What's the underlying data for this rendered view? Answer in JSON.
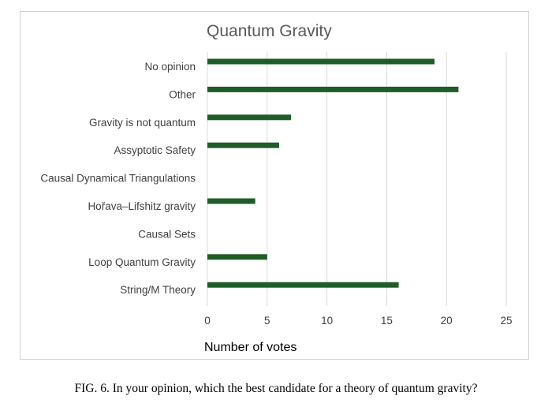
{
  "chart_data": {
    "type": "bar",
    "orientation": "horizontal",
    "title": "Quantum Gravity",
    "xlabel": "Number of votes",
    "ylabel": "",
    "categories": [
      "No opinion",
      "Other",
      "Gravity is not quantum",
      "Assyptotic Safety",
      "Causal Dynamical Triangulations",
      "Hořava–Lifshitz gravity",
      "Causal Sets",
      "Loop Quantum Gravity",
      "String/M Theory"
    ],
    "values": [
      19,
      21,
      7,
      6,
      0,
      4,
      0,
      5,
      16
    ],
    "xlim": [
      0,
      25
    ],
    "xticks": [
      0,
      5,
      10,
      15,
      20,
      25
    ],
    "grid": true,
    "bar_color": "#1e5c28",
    "grid_color": "#d9d9d9"
  },
  "caption": "FIG. 6. In your opinion, which the best candidate for a theory of quantum gravity?"
}
